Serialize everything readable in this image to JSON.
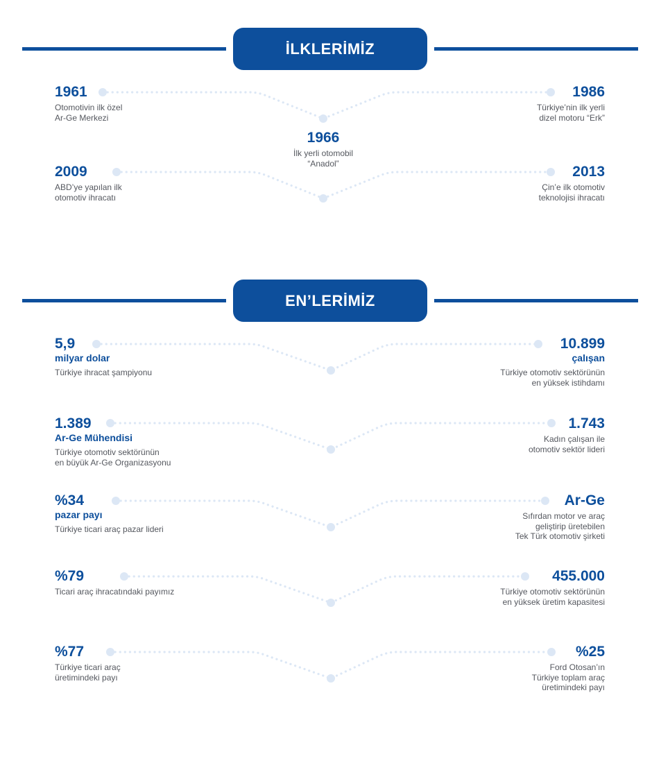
{
  "colors": {
    "primary": "#0d4f9c",
    "dot": "#dce7f5",
    "text": "#54575e",
    "background": "#ffffff"
  },
  "ilklerimiz": {
    "title": "İLKLERİMİZ",
    "items": [
      {
        "value": "1961",
        "desc": "Otomotivin ilk özel\nAr-Ge Merkezi"
      },
      {
        "value": "1986",
        "desc": "Türkiye’nin ilk yerli\ndizel motoru “Erk”"
      },
      {
        "value": "1966",
        "desc": "İlk yerli otomobil\n“Anadol”"
      },
      {
        "value": "2009",
        "desc": "ABD’ye yapılan ilk\notomotiv ihracatı"
      },
      {
        "value": "2013",
        "desc": "Çin’e ilk otomotiv\nteknolojisi ihracatı"
      }
    ]
  },
  "enlerimiz": {
    "title": "EN’LERİMİZ",
    "items": [
      {
        "value": "5,9",
        "sub": "milyar dolar",
        "desc": "Türkiye ihracat şampiyonu"
      },
      {
        "value": "10.899",
        "sub": "çalışan",
        "desc": "Türkiye otomotiv sektörünün\nen yüksek istihdamı"
      },
      {
        "value": "1.389",
        "sub": "Ar-Ge Mühendisi",
        "desc": "Türkiye otomotiv sektörünün\nen büyük Ar-Ge Organizasyonu"
      },
      {
        "value": "1.743",
        "desc": "Kadın çalışan ile\notomotiv sektör lideri"
      },
      {
        "value": "%34",
        "sub": "pazar payı",
        "desc": "Türkiye ticari araç pazar lideri"
      },
      {
        "value": "Ar-Ge",
        "desc": "Sıfırdan motor ve araç\ngeliştirip üretebilen\nTek Türk otomotiv şirketi"
      },
      {
        "value": "%79",
        "desc": "Ticari araç ihracatındaki payımız"
      },
      {
        "value": "455.000",
        "desc": "Türkiye otomotiv sektörünün\nen yüksek üretim kapasitesi"
      },
      {
        "value": "%77",
        "desc": "Türkiye ticari araç\nüretimindeki payı"
      },
      {
        "value": "%25",
        "desc": "Ford Otosan’ın\nTürkiye toplam araç\nüretimindeki payı"
      }
    ]
  }
}
